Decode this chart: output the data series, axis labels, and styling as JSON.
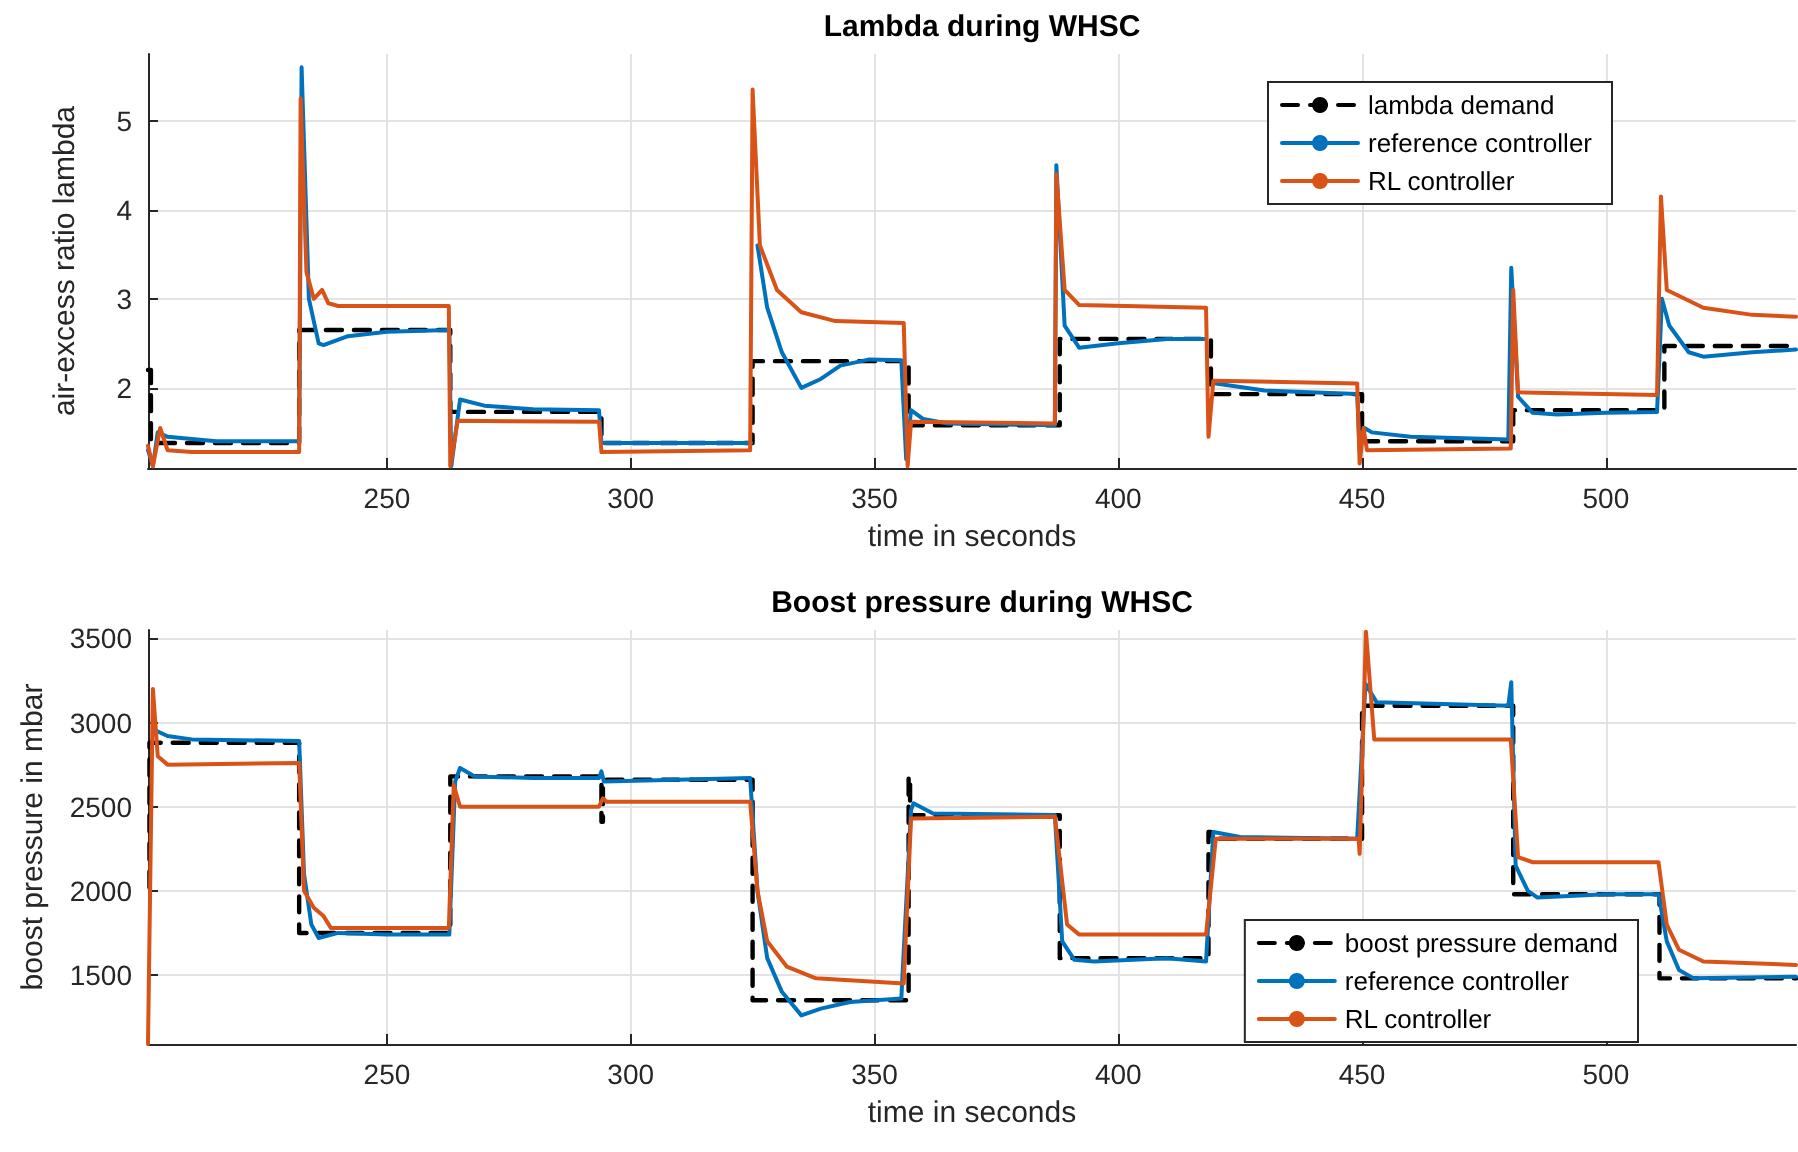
{
  "chart_data": [
    {
      "type": "line",
      "title": "Lambda during WHSC",
      "xlabel": "time in seconds",
      "ylabel": "air-excess ratio lambda",
      "xlim": [
        201,
        539
      ],
      "xticks": [
        250,
        300,
        350,
        400,
        450,
        500
      ],
      "ylim": [
        1.1,
        5.75
      ],
      "yticks": [
        2,
        3,
        4,
        5
      ],
      "grid": true,
      "legend": "top right",
      "marker": "none",
      "series": [
        {
          "name": "lambda demand",
          "color": "#000000",
          "line_style": "dashed",
          "x": [
            201,
            201.6,
            201.6,
            232,
            232,
            263,
            263,
            294,
            294,
            325,
            325,
            357,
            357,
            388,
            388,
            419,
            419,
            450,
            450,
            481,
            481,
            512,
            512,
            539
          ],
          "values": [
            2.2,
            2.2,
            1.38,
            1.38,
            2.65,
            2.65,
            1.73,
            1.73,
            1.38,
            1.38,
            2.3,
            2.3,
            1.58,
            1.58,
            2.55,
            2.55,
            1.93,
            1.93,
            1.4,
            1.4,
            1.75,
            1.75,
            2.47,
            2.47
          ]
        },
        {
          "name": "reference controller",
          "color": "#0072bd",
          "line_style": "solid",
          "x": [
            201,
            202,
            203,
            205,
            215,
            232,
            232.5,
            234,
            236,
            237,
            242,
            250,
            262.8,
            263.2,
            265,
            270,
            280,
            293.5,
            294,
            324.7,
            325.3,
            326,
            328,
            331,
            335,
            339,
            343,
            349,
            355.5,
            356.5,
            357.5,
            360,
            365,
            387,
            387.3,
            389,
            392,
            400,
            410,
            418,
            418.5,
            420,
            430,
            449,
            449.5,
            450.5,
            452,
            460,
            480,
            480.6,
            482,
            485,
            490,
            500,
            510.5,
            511.5,
            513,
            517,
            520,
            530,
            539
          ],
          "values": [
            1.3,
            1.12,
            1.5,
            1.45,
            1.4,
            1.4,
            5.6,
            3.0,
            2.5,
            2.48,
            2.58,
            2.63,
            2.65,
            1.12,
            1.87,
            1.8,
            1.76,
            1.75,
            1.38,
            1.38,
            null,
            3.6,
            2.9,
            2.4,
            2.0,
            2.1,
            2.25,
            2.32,
            2.31,
            1.2,
            1.75,
            1.65,
            1.6,
            1.58,
            4.5,
            2.7,
            2.45,
            2.5,
            2.55,
            2.55,
            null,
            2.05,
            1.97,
            1.93,
            1.3,
            1.55,
            1.5,
            1.45,
            1.42,
            3.35,
            1.9,
            1.72,
            1.7,
            1.72,
            1.73,
            3.0,
            2.7,
            2.4,
            2.35,
            2.4,
            2.43
          ]
        },
        {
          "name": "RL controller",
          "color": "#d95319",
          "line_style": "solid",
          "x": [
            201,
            202,
            203.5,
            205,
            210,
            232,
            232.3,
            233.5,
            235,
            236.7,
            238,
            240,
            262.7,
            263,
            264.5,
            293.5,
            294,
            324.5,
            325,
            326.5,
            330,
            335,
            342,
            356,
            356.8,
            357.5,
            387,
            387.3,
            389,
            392,
            418,
            418.5,
            419.5,
            449,
            449.5,
            450.3,
            451,
            480.5,
            481,
            482,
            510.5,
            511.3,
            512.5,
            520,
            530,
            539
          ],
          "values": [
            1.35,
            1.12,
            1.55,
            1.3,
            1.28,
            1.28,
            5.25,
            3.3,
            3.0,
            3.1,
            2.95,
            2.92,
            2.92,
            1.12,
            1.63,
            1.62,
            1.28,
            1.3,
            5.35,
            3.6,
            3.1,
            2.85,
            2.75,
            2.73,
            1.12,
            1.62,
            1.6,
            4.4,
            3.1,
            2.93,
            2.9,
            1.45,
            2.08,
            2.05,
            1.15,
            1.55,
            1.3,
            1.32,
            3.1,
            1.95,
            1.92,
            4.15,
            3.1,
            2.9,
            2.82,
            2.8
          ]
        }
      ]
    },
    {
      "type": "line",
      "title": "Boost pressure during WHSC",
      "xlabel": "time in seconds",
      "ylabel": "boost pressure in mbar",
      "xlim": [
        201,
        539
      ],
      "xticks": [
        250,
        300,
        350,
        400,
        450,
        500
      ],
      "ylim": [
        1090,
        3550
      ],
      "yticks": [
        1500,
        2000,
        2500,
        3000,
        3500
      ],
      "grid": true,
      "legend": "bottom right",
      "marker": "none",
      "series": [
        {
          "name": "boost pressure demand",
          "color": "#000000",
          "line_style": "dashed",
          "x": [
            201.3,
            201.3,
            232,
            232,
            263,
            263,
            294,
            294,
            294.3,
            294.3,
            325,
            325,
            357,
            357,
            357.3,
            357.3,
            388,
            388,
            418.5,
            418.5,
            419,
            419,
            450,
            450,
            481,
            481,
            511,
            511,
            539
          ],
          "values": [
            2020,
            2880,
            2880,
            1750,
            1750,
            2680,
            2680,
            2410,
            2410,
            2660,
            2660,
            1350,
            1350,
            2680,
            2680,
            2450,
            2450,
            1600,
            1600,
            2350,
            2350,
            2310,
            2310,
            3100,
            3100,
            1980,
            1980,
            1480,
            1480
          ]
        },
        {
          "name": "reference controller",
          "color": "#0072bd",
          "line_style": "solid",
          "x": [
            202,
            205,
            210,
            232,
            233,
            234.5,
            236,
            240,
            250,
            262.8,
            264,
            265,
            268,
            280,
            293.5,
            294,
            294.5,
            324.5,
            326,
            328,
            331,
            335,
            339,
            345,
            355.5,
            357.5,
            358,
            362,
            387,
            388.5,
            391,
            395,
            410,
            418,
            419.5,
            425,
            449,
            450.7,
            453,
            480,
            480.6,
            481.5,
            484,
            486,
            500,
            510.8,
            512.5,
            515,
            518,
            539
          ],
          "values": [
            2960,
            2920,
            2900,
            2890,
            2100,
            1800,
            1720,
            1750,
            1740,
            1740,
            2650,
            2730,
            2680,
            2670,
            2670,
            2710,
            2650,
            2670,
            2000,
            1600,
            1400,
            1260,
            1300,
            1340,
            1360,
            2480,
            2520,
            2460,
            2450,
            1700,
            1590,
            1580,
            1600,
            1580,
            2350,
            2320,
            2310,
            3230,
            3120,
            3100,
            3240,
            2150,
            2000,
            1960,
            1980,
            1980,
            1700,
            1530,
            1480,
            1490
          ]
        },
        {
          "name": "RL controller",
          "color": "#d95319",
          "line_style": "solid",
          "x": [
            201,
            202,
            203,
            205,
            232,
            233,
            235,
            237,
            238.5,
            262.7,
            263.7,
            265,
            293.5,
            294.3,
            295,
            324.5,
            326,
            328,
            332,
            338,
            356,
            357.5,
            387,
            389.5,
            392,
            418,
            420,
            449.3,
            449.5,
            450.8,
            452.5,
            480.5,
            482,
            485,
            510.8,
            512.5,
            515,
            520,
            539
          ],
          "values": [
            1090,
            3200,
            2800,
            2750,
            2760,
            2000,
            1900,
            1850,
            1780,
            1780,
            2630,
            2500,
            2500,
            2550,
            2530,
            2530,
            2000,
            1700,
            1550,
            1480,
            1450,
            2430,
            2440,
            1800,
            1740,
            1740,
            2310,
            2310,
            2220,
            3540,
            2900,
            2900,
            2200,
            2170,
            2170,
            1800,
            1650,
            1580,
            1560
          ]
        }
      ]
    }
  ]
}
